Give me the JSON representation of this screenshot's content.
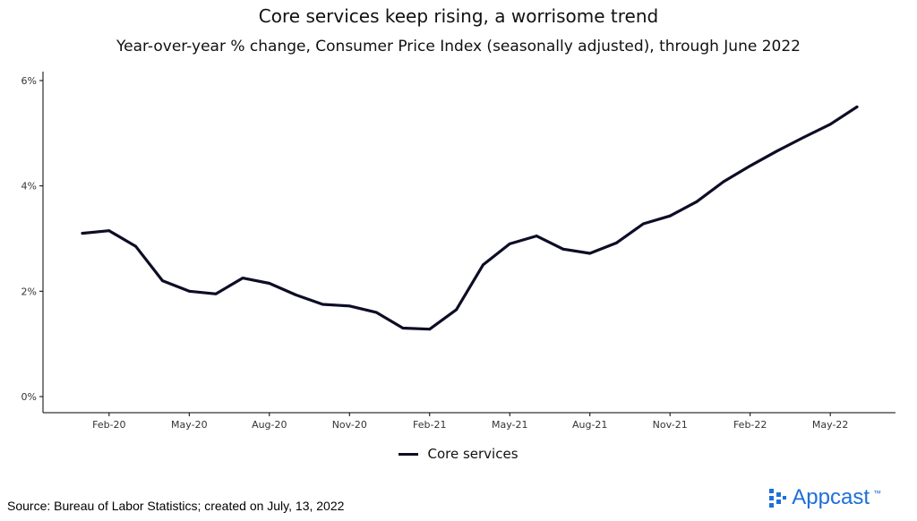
{
  "title": "Core services keep rising, a worrisome trend",
  "subtitle": "Year-over-year % change, Consumer Price Index (seasonally adjusted), through June 2022",
  "source": "Source: Bureau of Labor Statistics; created on July, 13, 2022",
  "brand": {
    "name": "Appcast",
    "tm": "™",
    "color": "#1e6fd9"
  },
  "line_color": "#0d0d26",
  "chart_data": {
    "type": "line",
    "title": "Core services keep rising, a worrisome trend",
    "subtitle": "Year-over-year % change, Consumer Price Index (seasonally adjusted), through June 2022",
    "xlabel": "",
    "ylabel": "",
    "x": [
      "Jan-20",
      "Feb-20",
      "Mar-20",
      "Apr-20",
      "May-20",
      "Jun-20",
      "Jul-20",
      "Aug-20",
      "Sep-20",
      "Oct-20",
      "Nov-20",
      "Dec-20",
      "Jan-21",
      "Feb-21",
      "Mar-21",
      "Apr-21",
      "May-21",
      "Jun-21",
      "Jul-21",
      "Aug-21",
      "Sep-21",
      "Oct-21",
      "Nov-21",
      "Dec-21",
      "Jan-22",
      "Feb-22",
      "Mar-22",
      "Apr-22",
      "May-22",
      "Jun-22"
    ],
    "x_ticks": [
      "Feb-20",
      "May-20",
      "Aug-20",
      "Nov-20",
      "Feb-21",
      "May-21",
      "Aug-21",
      "Nov-21",
      "Feb-22",
      "May-22"
    ],
    "y_ticks": [
      "0%",
      "2%",
      "4%",
      "6%"
    ],
    "ylim": [
      0,
      6
    ],
    "grid": false,
    "legend_position": "bottom",
    "series": [
      {
        "name": "Core services",
        "values": [
          3.1,
          3.15,
          2.85,
          2.2,
          2.0,
          1.95,
          2.25,
          2.15,
          1.93,
          1.75,
          1.72,
          1.6,
          1.3,
          1.28,
          1.65,
          2.5,
          2.9,
          3.05,
          2.8,
          2.72,
          2.92,
          3.28,
          3.43,
          3.7,
          4.08,
          4.38,
          4.66,
          4.92,
          5.17,
          5.5
        ]
      }
    ]
  }
}
